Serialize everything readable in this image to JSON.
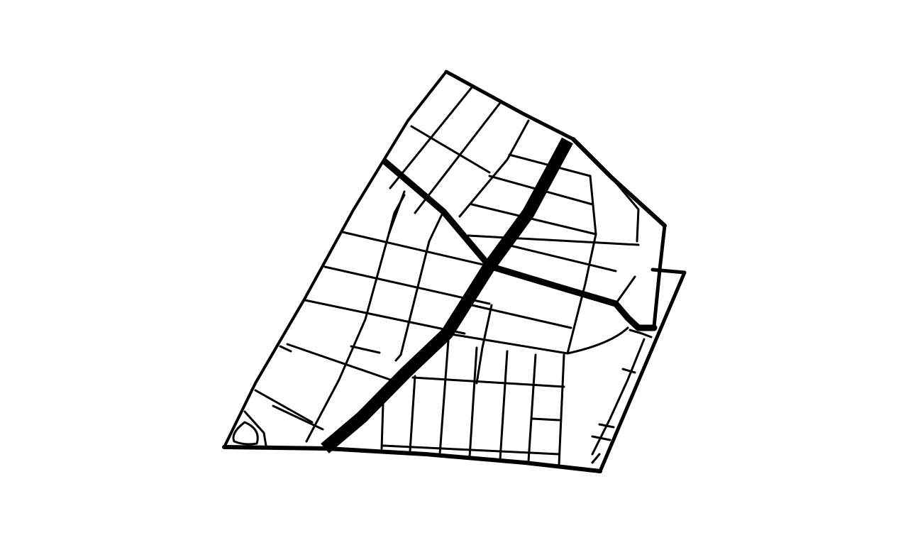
{
  "map": {
    "background_color": "#ffffff",
    "road_color": "#000000",
    "labels": [],
    "road_classes": [
      "boundary",
      "major-arterial",
      "secondary-road",
      "local-street"
    ]
  }
}
